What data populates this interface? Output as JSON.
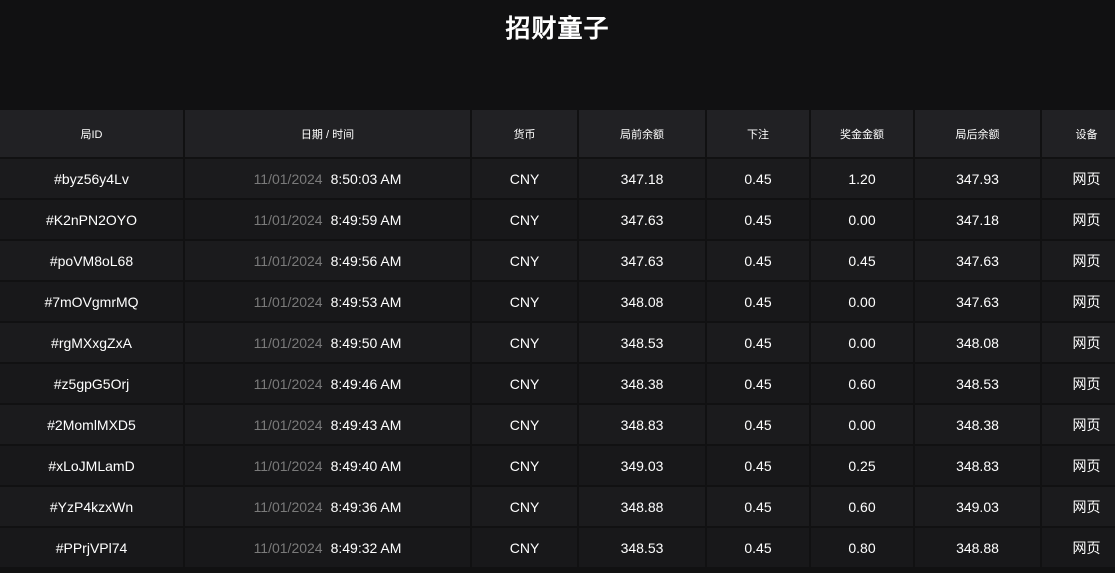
{
  "title": "招财童子",
  "columns": [
    "局ID",
    "日期 / 时间",
    "货币",
    "局前余额",
    "下注",
    "奖金金额",
    "局后余额",
    "设备"
  ],
  "rows": [
    {
      "id": "#byz56y4Lv",
      "date": "11/01/2024",
      "time": "8:50:03 AM",
      "currency": "CNY",
      "before": "347.18",
      "bet": "0.45",
      "win": "1.20",
      "after": "347.93",
      "device": "网页"
    },
    {
      "id": "#K2nPN2OYO",
      "date": "11/01/2024",
      "time": "8:49:59 AM",
      "currency": "CNY",
      "before": "347.63",
      "bet": "0.45",
      "win": "0.00",
      "after": "347.18",
      "device": "网页"
    },
    {
      "id": "#poVM8oL68",
      "date": "11/01/2024",
      "time": "8:49:56 AM",
      "currency": "CNY",
      "before": "347.63",
      "bet": "0.45",
      "win": "0.45",
      "after": "347.63",
      "device": "网页"
    },
    {
      "id": "#7mOVgmrMQ",
      "date": "11/01/2024",
      "time": "8:49:53 AM",
      "currency": "CNY",
      "before": "348.08",
      "bet": "0.45",
      "win": "0.00",
      "after": "347.63",
      "device": "网页"
    },
    {
      "id": "#rgMXxgZxA",
      "date": "11/01/2024",
      "time": "8:49:50 AM",
      "currency": "CNY",
      "before": "348.53",
      "bet": "0.45",
      "win": "0.00",
      "after": "348.08",
      "device": "网页"
    },
    {
      "id": "#z5gpG5Orj",
      "date": "11/01/2024",
      "time": "8:49:46 AM",
      "currency": "CNY",
      "before": "348.38",
      "bet": "0.45",
      "win": "0.60",
      "after": "348.53",
      "device": "网页"
    },
    {
      "id": "#2MomlMXD5",
      "date": "11/01/2024",
      "time": "8:49:43 AM",
      "currency": "CNY",
      "before": "348.83",
      "bet": "0.45",
      "win": "0.00",
      "after": "348.38",
      "device": "网页"
    },
    {
      "id": "#xLoJMLamD",
      "date": "11/01/2024",
      "time": "8:49:40 AM",
      "currency": "CNY",
      "before": "349.03",
      "bet": "0.45",
      "win": "0.25",
      "after": "348.83",
      "device": "网页"
    },
    {
      "id": "#YzP4kzxWn",
      "date": "11/01/2024",
      "time": "8:49:36 AM",
      "currency": "CNY",
      "before": "348.88",
      "bet": "0.45",
      "win": "0.60",
      "after": "349.03",
      "device": "网页"
    },
    {
      "id": "#PPrjVPl74",
      "date": "11/01/2024",
      "time": "8:49:32 AM",
      "currency": "CNY",
      "before": "348.53",
      "bet": "0.45",
      "win": "0.80",
      "after": "348.88",
      "device": "网页"
    }
  ]
}
